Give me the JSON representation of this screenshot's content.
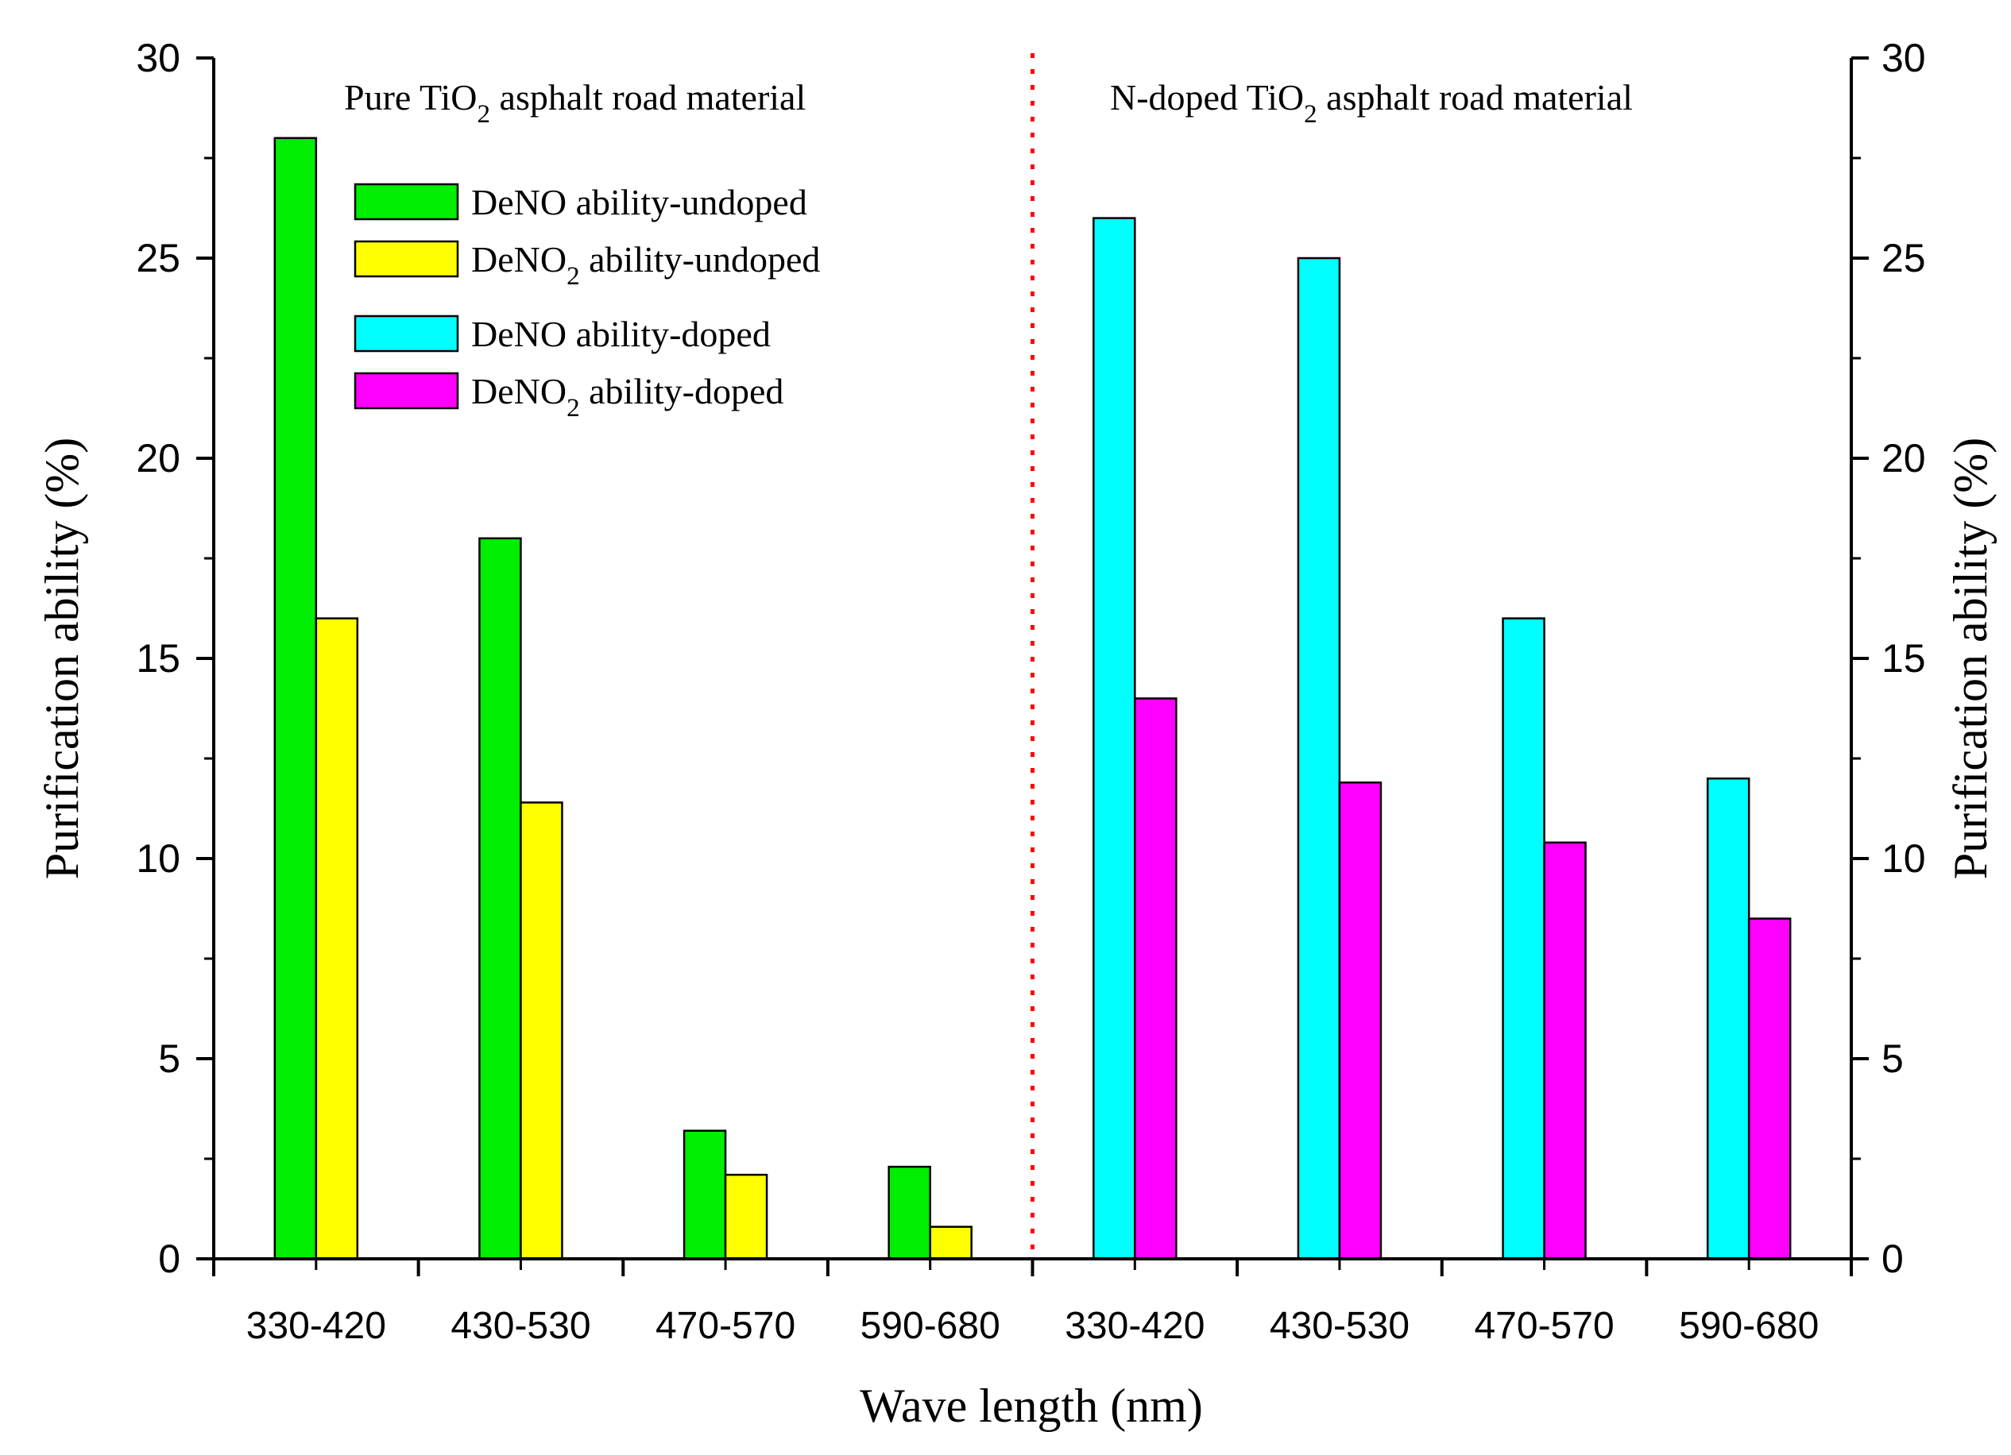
{
  "chart_data": {
    "type": "bar",
    "xlabel": "Wave length (nm)",
    "ylabel": "Purification ability (%)",
    "ylabel_right": "Purification ability (%)",
    "ylim": [
      0,
      30
    ],
    "y_ticks": [
      "0",
      "5",
      "10",
      "15",
      "20",
      "25",
      "30"
    ],
    "divider_color": "#ff0000",
    "panels": [
      {
        "title_prefix": "Pure TiO",
        "title_sub": "2",
        "title_suffix": " asphalt road material",
        "categories": [
          "330-420",
          "430-530",
          "470-570",
          "590-680"
        ],
        "series": [
          {
            "name": "DeNO ability-undoped",
            "color": "#00ee00",
            "values": [
              28,
              18,
              3.2,
              2.3
            ]
          },
          {
            "name": "DeNO2 ability-undoped",
            "color": "#ffff00",
            "values": [
              16,
              11.4,
              2.1,
              0.8
            ]
          }
        ]
      },
      {
        "title_prefix": "N-doped TiO",
        "title_sub": "2",
        "title_suffix": " asphalt road material",
        "categories": [
          "330-420",
          "430-530",
          "470-570",
          "590-680"
        ],
        "series": [
          {
            "name": "DeNO ability-doped",
            "color": "#00ffff",
            "values": [
              26,
              25,
              16,
              12
            ]
          },
          {
            "name": "DeNO2 ability-doped",
            "color": "#ff00ff",
            "values": [
              14,
              11.9,
              10.4,
              8.5
            ]
          }
        ]
      }
    ],
    "legend": [
      {
        "prefix": "DeNO",
        "sub": "",
        "suffix": " ability-undoped",
        "color": "#00ee00"
      },
      {
        "prefix": "DeNO",
        "sub": "2",
        "suffix": " ability-undoped",
        "color": "#ffff00"
      },
      {
        "prefix": "DeNO",
        "sub": "",
        "suffix": " ability-doped",
        "color": "#00ffff"
      },
      {
        "prefix": "DeNO",
        "sub": "2",
        "suffix": " ability-doped",
        "color": "#ff00ff"
      }
    ]
  }
}
